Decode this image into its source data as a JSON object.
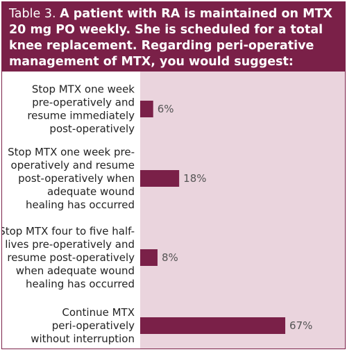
{
  "title": {
    "label": "Table 3.",
    "question": "A patient with RA is maintained on MTX 20 mg PO weekly. She is scheduled for a total knee replacement. Regarding peri-operative management of MTX, you would suggest:"
  },
  "colors": {
    "header": "#7a2048",
    "plot_background": "#ead4dd",
    "bar": "#7a2048"
  },
  "chart_data": {
    "type": "bar",
    "orientation": "horizontal",
    "categories": [
      "Stop MTX one week pre-operatively and resume immediately post-operatively",
      "Stop MTX one week pre-operatively and resume post-operatively when adequate wound healing has occurred",
      "Stop MTX four to five half-lives pre-operatively and resume post-operatively when adequate wound healing has occurred",
      "Continue MTX peri-operatively without interruption"
    ],
    "values": [
      6,
      18,
      8,
      67
    ],
    "value_labels": [
      "6%",
      "18%",
      "8%",
      "67%"
    ],
    "xlim": [
      0,
      100
    ],
    "grid": false,
    "legend": false
  }
}
